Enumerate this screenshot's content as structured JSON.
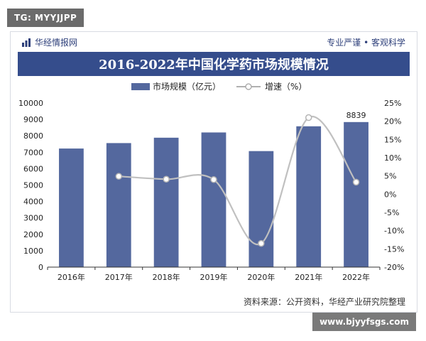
{
  "overlay_tag": "TG: MYYJJPP",
  "overlay_url": "www.bjyyfsgs.com",
  "header": {
    "brand": "华经情报网",
    "slogan": "专业严谨 • 客观科学"
  },
  "footer": {
    "source": "资料来源：公开资料，华经产业研究院整理"
  },
  "chart_data": {
    "type": "bar",
    "title": "2016-2022年中国化学药市场规模情况",
    "categories": [
      "2016年",
      "2017年",
      "2018年",
      "2019年",
      "2020年",
      "2021年",
      "2022年"
    ],
    "series": [
      {
        "name": "市场规模（亿元）",
        "type": "bar",
        "axis": "left",
        "values": [
          7226,
          7558,
          7886,
          8206,
          7070,
          8581,
          8839
        ],
        "labels": [
          "",
          "",
          "",
          "",
          "",
          "",
          "8839"
        ]
      },
      {
        "name": "增速（%）",
        "type": "line",
        "axis": "right",
        "values": [
          null,
          4.9,
          4.1,
          4.0,
          -13.5,
          21.0,
          3.3
        ]
      }
    ],
    "y_left": {
      "min": 0,
      "max": 10000,
      "ticks": [
        "0",
        "1000",
        "2000",
        "3000",
        "4000",
        "5000",
        "6000",
        "7000",
        "8000",
        "9000",
        "10000"
      ]
    },
    "y_right": {
      "min": -20,
      "max": 25,
      "ticks": [
        "-20%",
        "-15%",
        "-10%",
        "-5%",
        "0%",
        "5%",
        "10%",
        "15%",
        "20%",
        "25%"
      ]
    },
    "legend_position": "top-center",
    "colors": {
      "bar": "#54689e",
      "line": "#c0c0c0",
      "title_bg": "#354d8c"
    }
  }
}
